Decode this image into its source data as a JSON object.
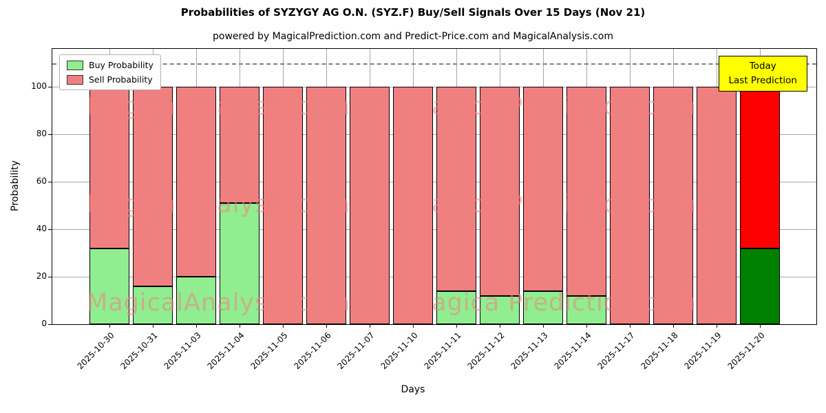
{
  "title": "Probabilities of SYZYGY AG O.N. (SYZ.F) Buy/Sell Signals Over 15 Days (Nov 21)",
  "subtitle": "powered by MagicalPrediction.com and Predict-Price.com and MagicalAnalysis.com",
  "axes": {
    "xlabel": "Days",
    "ylabel": "Probability",
    "yticks": [
      0,
      20,
      40,
      60,
      80,
      100
    ]
  },
  "legend": {
    "buy": "Buy Probability",
    "sell": "Sell Probability"
  },
  "annotation": {
    "line1": "Today",
    "line2": "Last Prediction"
  },
  "watermarks": [
    "MagicalAnalysis.com",
    "Magica Prediction.com"
  ],
  "colors": {
    "buy": "#90EE90",
    "sell": "#F08080",
    "today_buy": "#008000",
    "today_sell": "#FF0000",
    "annotation_bg": "#FFFF00",
    "grid": "#a6a6a6",
    "watermark": "#F08080"
  },
  "chart_data": {
    "type": "bar",
    "stacked": true,
    "title": "Probabilities of SYZYGY AG O.N. (SYZ.F) Buy/Sell Signals Over 15 Days (Nov 21)",
    "xlabel": "Days",
    "ylabel": "Probability",
    "categories": [
      "2025-10-30",
      "2025-10-31",
      "2025-11-03",
      "2025-11-04",
      "2025-11-05",
      "2025-11-06",
      "2025-11-07",
      "2025-11-10",
      "2025-11-11",
      "2025-11-12",
      "2025-11-13",
      "2025-11-14",
      "2025-11-17",
      "2025-11-18",
      "2025-11-19",
      "2025-11-20"
    ],
    "series": [
      {
        "name": "Buy Probability",
        "values": [
          32,
          16,
          20,
          51,
          0,
          0,
          0,
          0,
          14,
          12,
          14,
          12,
          0,
          0,
          0,
          32
        ]
      },
      {
        "name": "Sell Probability",
        "values": [
          68,
          84,
          80,
          49,
          100,
          100,
          100,
          100,
          86,
          88,
          86,
          88,
          100,
          100,
          100,
          68
        ]
      }
    ],
    "today_index": 15,
    "ylim": [
      0,
      116
    ],
    "dashed_line_y": 110,
    "grid": true,
    "legend_position": "upper-left"
  }
}
